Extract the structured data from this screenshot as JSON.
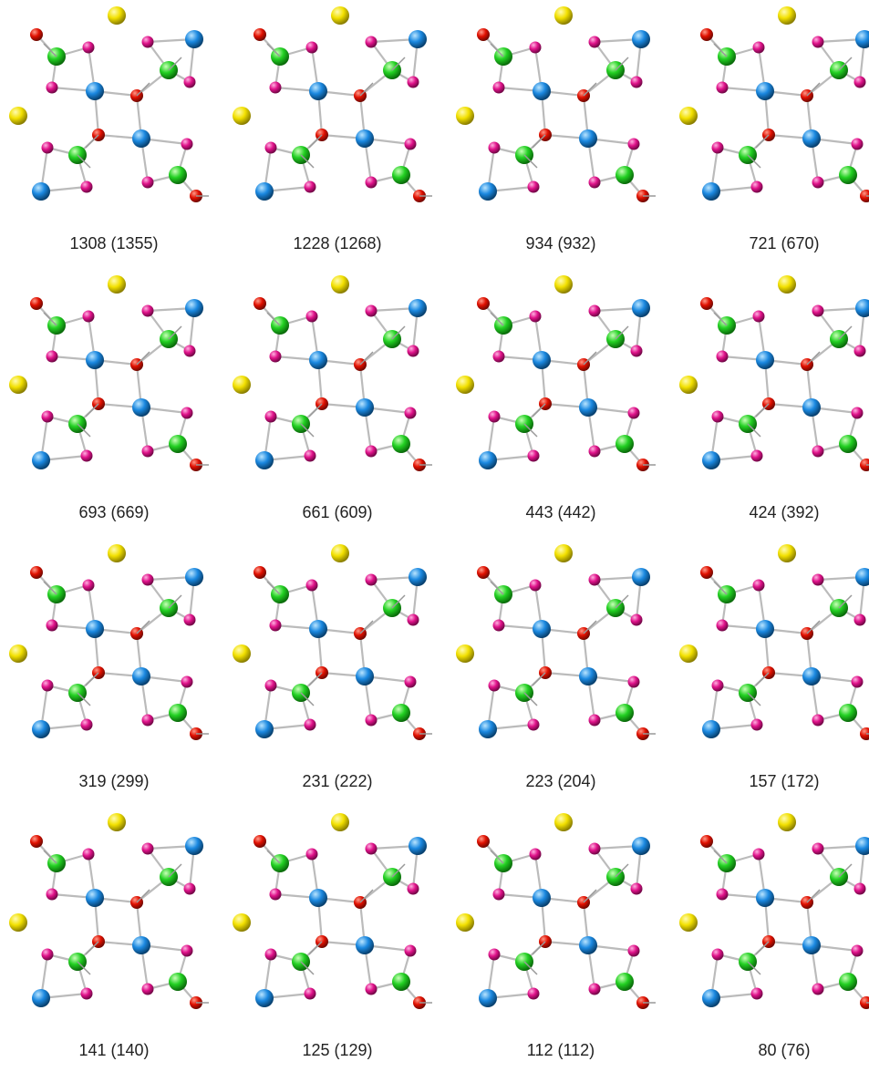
{
  "panels": [
    {
      "label": "1308 (1355)"
    },
    {
      "label": "1228 (1268)"
    },
    {
      "label": "934 (932)"
    },
    {
      "label": "721 (670)"
    },
    {
      "label": "693 (669)"
    },
    {
      "label": "661 (609)"
    },
    {
      "label": "443 (442)"
    },
    {
      "label": "424 (392)"
    },
    {
      "label": "319 (299)"
    },
    {
      "label": "231 (222)"
    },
    {
      "label": "223 (204)"
    },
    {
      "label": "157 (172)"
    },
    {
      "label": "141 (140)"
    },
    {
      "label": "125 (129)"
    },
    {
      "label": "112 (112)"
    },
    {
      "label": "80 (76)"
    }
  ]
}
